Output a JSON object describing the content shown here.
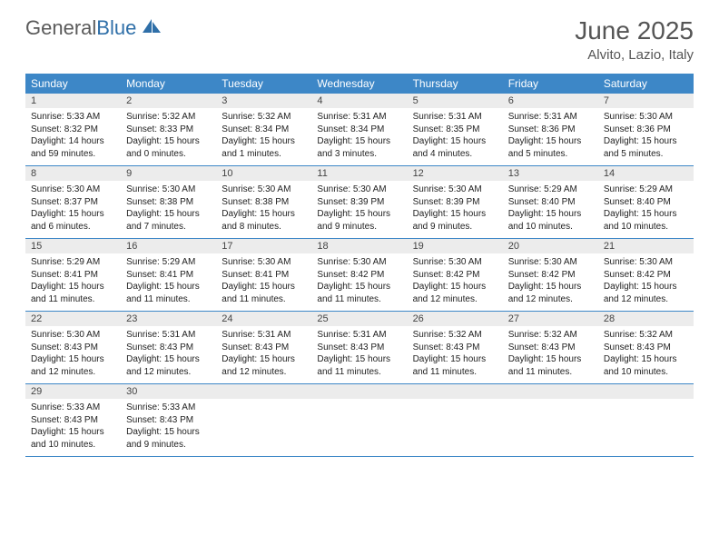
{
  "brand": {
    "part1": "General",
    "part2": "Blue"
  },
  "title": "June 2025",
  "location": "Alvito, Lazio, Italy",
  "colors": {
    "header_bar": "#3d87c7",
    "daynum_bg": "#ececec",
    "week_border": "#3d87c7",
    "text": "#222222",
    "title_text": "#555555",
    "logo_gray": "#5a5a5a",
    "logo_blue": "#2f6fa8",
    "background": "#ffffff"
  },
  "typography": {
    "title_fontsize": 28,
    "location_fontsize": 15,
    "weekday_fontsize": 12,
    "daynum_fontsize": 11,
    "body_fontsize": 10,
    "font_family": "Arial"
  },
  "layout": {
    "columns": 7,
    "rows": 5,
    "cell_aspect": "auto"
  },
  "weekdays": [
    "Sunday",
    "Monday",
    "Tuesday",
    "Wednesday",
    "Thursday",
    "Friday",
    "Saturday"
  ],
  "days": [
    {
      "n": "1",
      "sunrise": "Sunrise: 5:33 AM",
      "sunset": "Sunset: 8:32 PM",
      "dl1": "Daylight: 14 hours",
      "dl2": "and 59 minutes."
    },
    {
      "n": "2",
      "sunrise": "Sunrise: 5:32 AM",
      "sunset": "Sunset: 8:33 PM",
      "dl1": "Daylight: 15 hours",
      "dl2": "and 0 minutes."
    },
    {
      "n": "3",
      "sunrise": "Sunrise: 5:32 AM",
      "sunset": "Sunset: 8:34 PM",
      "dl1": "Daylight: 15 hours",
      "dl2": "and 1 minutes."
    },
    {
      "n": "4",
      "sunrise": "Sunrise: 5:31 AM",
      "sunset": "Sunset: 8:34 PM",
      "dl1": "Daylight: 15 hours",
      "dl2": "and 3 minutes."
    },
    {
      "n": "5",
      "sunrise": "Sunrise: 5:31 AM",
      "sunset": "Sunset: 8:35 PM",
      "dl1": "Daylight: 15 hours",
      "dl2": "and 4 minutes."
    },
    {
      "n": "6",
      "sunrise": "Sunrise: 5:31 AM",
      "sunset": "Sunset: 8:36 PM",
      "dl1": "Daylight: 15 hours",
      "dl2": "and 5 minutes."
    },
    {
      "n": "7",
      "sunrise": "Sunrise: 5:30 AM",
      "sunset": "Sunset: 8:36 PM",
      "dl1": "Daylight: 15 hours",
      "dl2": "and 5 minutes."
    },
    {
      "n": "8",
      "sunrise": "Sunrise: 5:30 AM",
      "sunset": "Sunset: 8:37 PM",
      "dl1": "Daylight: 15 hours",
      "dl2": "and 6 minutes."
    },
    {
      "n": "9",
      "sunrise": "Sunrise: 5:30 AM",
      "sunset": "Sunset: 8:38 PM",
      "dl1": "Daylight: 15 hours",
      "dl2": "and 7 minutes."
    },
    {
      "n": "10",
      "sunrise": "Sunrise: 5:30 AM",
      "sunset": "Sunset: 8:38 PM",
      "dl1": "Daylight: 15 hours",
      "dl2": "and 8 minutes."
    },
    {
      "n": "11",
      "sunrise": "Sunrise: 5:30 AM",
      "sunset": "Sunset: 8:39 PM",
      "dl1": "Daylight: 15 hours",
      "dl2": "and 9 minutes."
    },
    {
      "n": "12",
      "sunrise": "Sunrise: 5:30 AM",
      "sunset": "Sunset: 8:39 PM",
      "dl1": "Daylight: 15 hours",
      "dl2": "and 9 minutes."
    },
    {
      "n": "13",
      "sunrise": "Sunrise: 5:29 AM",
      "sunset": "Sunset: 8:40 PM",
      "dl1": "Daylight: 15 hours",
      "dl2": "and 10 minutes."
    },
    {
      "n": "14",
      "sunrise": "Sunrise: 5:29 AM",
      "sunset": "Sunset: 8:40 PM",
      "dl1": "Daylight: 15 hours",
      "dl2": "and 10 minutes."
    },
    {
      "n": "15",
      "sunrise": "Sunrise: 5:29 AM",
      "sunset": "Sunset: 8:41 PM",
      "dl1": "Daylight: 15 hours",
      "dl2": "and 11 minutes."
    },
    {
      "n": "16",
      "sunrise": "Sunrise: 5:29 AM",
      "sunset": "Sunset: 8:41 PM",
      "dl1": "Daylight: 15 hours",
      "dl2": "and 11 minutes."
    },
    {
      "n": "17",
      "sunrise": "Sunrise: 5:30 AM",
      "sunset": "Sunset: 8:41 PM",
      "dl1": "Daylight: 15 hours",
      "dl2": "and 11 minutes."
    },
    {
      "n": "18",
      "sunrise": "Sunrise: 5:30 AM",
      "sunset": "Sunset: 8:42 PM",
      "dl1": "Daylight: 15 hours",
      "dl2": "and 11 minutes."
    },
    {
      "n": "19",
      "sunrise": "Sunrise: 5:30 AM",
      "sunset": "Sunset: 8:42 PM",
      "dl1": "Daylight: 15 hours",
      "dl2": "and 12 minutes."
    },
    {
      "n": "20",
      "sunrise": "Sunrise: 5:30 AM",
      "sunset": "Sunset: 8:42 PM",
      "dl1": "Daylight: 15 hours",
      "dl2": "and 12 minutes."
    },
    {
      "n": "21",
      "sunrise": "Sunrise: 5:30 AM",
      "sunset": "Sunset: 8:42 PM",
      "dl1": "Daylight: 15 hours",
      "dl2": "and 12 minutes."
    },
    {
      "n": "22",
      "sunrise": "Sunrise: 5:30 AM",
      "sunset": "Sunset: 8:43 PM",
      "dl1": "Daylight: 15 hours",
      "dl2": "and 12 minutes."
    },
    {
      "n": "23",
      "sunrise": "Sunrise: 5:31 AM",
      "sunset": "Sunset: 8:43 PM",
      "dl1": "Daylight: 15 hours",
      "dl2": "and 12 minutes."
    },
    {
      "n": "24",
      "sunrise": "Sunrise: 5:31 AM",
      "sunset": "Sunset: 8:43 PM",
      "dl1": "Daylight: 15 hours",
      "dl2": "and 12 minutes."
    },
    {
      "n": "25",
      "sunrise": "Sunrise: 5:31 AM",
      "sunset": "Sunset: 8:43 PM",
      "dl1": "Daylight: 15 hours",
      "dl2": "and 11 minutes."
    },
    {
      "n": "26",
      "sunrise": "Sunrise: 5:32 AM",
      "sunset": "Sunset: 8:43 PM",
      "dl1": "Daylight: 15 hours",
      "dl2": "and 11 minutes."
    },
    {
      "n": "27",
      "sunrise": "Sunrise: 5:32 AM",
      "sunset": "Sunset: 8:43 PM",
      "dl1": "Daylight: 15 hours",
      "dl2": "and 11 minutes."
    },
    {
      "n": "28",
      "sunrise": "Sunrise: 5:32 AM",
      "sunset": "Sunset: 8:43 PM",
      "dl1": "Daylight: 15 hours",
      "dl2": "and 10 minutes."
    },
    {
      "n": "29",
      "sunrise": "Sunrise: 5:33 AM",
      "sunset": "Sunset: 8:43 PM",
      "dl1": "Daylight: 15 hours",
      "dl2": "and 10 minutes."
    },
    {
      "n": "30",
      "sunrise": "Sunrise: 5:33 AM",
      "sunset": "Sunset: 8:43 PM",
      "dl1": "Daylight: 15 hours",
      "dl2": "and 9 minutes."
    }
  ]
}
